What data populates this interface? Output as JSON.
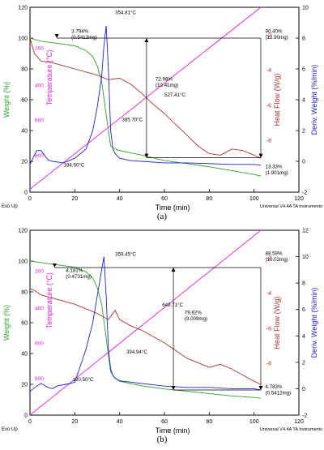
{
  "chart_data": [
    {
      "type": "line",
      "panel_label": "(a)",
      "xlabel": "Time (min)",
      "xlim": [
        0,
        120
      ],
      "x_ticks": [
        "0",
        "20",
        "40",
        "60",
        "80",
        "100",
        "120"
      ],
      "ylabel_left": "Weight (%)",
      "ylim_left": [
        0,
        120
      ],
      "left_ticks": [
        "0",
        "20",
        "40",
        "60",
        "80",
        "100",
        "120"
      ],
      "temp_label": "Temperature (°C)",
      "temp_ticks": [
        "200",
        "400",
        "600",
        "800"
      ],
      "ylabel_heat": "Heat Flow (W/g)",
      "heat_ticks": [
        "-2",
        "-4",
        "-6",
        "-8"
      ],
      "ylabel_deriv": "Deriv. Weight (%/min)",
      "ylim_deriv": [
        -2,
        10
      ],
      "deriv_ticks": [
        "-2",
        "0",
        "2",
        "4",
        "6",
        "8",
        "10"
      ],
      "footer_left": "Exo Up",
      "footer_right": "Universal V4.4A TA Instruments",
      "colors": {
        "weight": "#2ca02c",
        "temperature": "#e020e0",
        "heat_flow": "#b03030",
        "deriv": "#2020d0"
      },
      "series": [
        {
          "name": "Weight (%)",
          "axis": "left",
          "x": [
            0,
            5,
            10,
            15,
            20,
            25,
            28,
            30,
            32,
            34,
            36,
            38,
            40,
            50,
            60,
            70,
            80,
            90,
            100,
            103
          ],
          "y": [
            100,
            98,
            97,
            96,
            95,
            92,
            88,
            82,
            72,
            50,
            30,
            28,
            27,
            24,
            20.5,
            18.5,
            16.5,
            14,
            11.5,
            10.5
          ]
        },
        {
          "name": "Temperature (°C)",
          "axis": "left",
          "x": [
            0,
            103
          ],
          "y": [
            2,
            120
          ]
        },
        {
          "name": "Heat Flow (W/g)",
          "axis": "left",
          "x": [
            0,
            2,
            5,
            10,
            15,
            20,
            25,
            30,
            35,
            40,
            45,
            50,
            55,
            60,
            65,
            70,
            75,
            80,
            85,
            90,
            95,
            100,
            103
          ],
          "y": [
            100,
            90,
            85,
            84,
            82,
            80,
            78,
            76,
            73,
            74,
            70,
            64,
            57,
            51,
            44,
            37,
            30,
            25,
            24,
            28,
            27,
            24,
            22
          ]
        },
        {
          "name": "Deriv. Weight (%/min)",
          "axis": "right",
          "x": [
            0,
            3,
            5,
            8,
            10,
            15,
            20,
            25,
            28,
            30,
            32,
            33,
            34,
            35,
            36,
            37,
            38,
            40,
            45,
            50,
            60,
            70,
            80,
            90,
            100,
            103
          ],
          "y": [
            -0.2,
            0.7,
            0.7,
            0.1,
            0,
            -0.1,
            0.2,
            0.8,
            2,
            3.5,
            5.5,
            7.5,
            8.8,
            6,
            2,
            0.8,
            0.5,
            0.2,
            0.05,
            0,
            -0.1,
            -0.1,
            -0.15,
            -0.2,
            -0.2,
            -0.25
          ]
        }
      ],
      "markers": {
        "left_dashed_x": 12,
        "step_x": 52,
        "right_x": 103,
        "top_weight": 100,
        "mid_weight": 22.3,
        "end_weight": 22.3
      },
      "annotations": [
        {
          "text": "3.794%",
          "x": 18.5,
          "y": 103.5
        },
        {
          "text": "(0.5413mg)",
          "x": 18.5,
          "y": 99.5
        },
        {
          "text": "354.81°C",
          "x": 38,
          "y": 115.5
        },
        {
          "text": "72.98%",
          "x": 56,
          "y": 72.5
        },
        {
          "text": "(10.41mg)",
          "x": 56,
          "y": 68.5
        },
        {
          "text": "527.41°C",
          "x": 60,
          "y": 62
        },
        {
          "text": "385.70°C",
          "x": 41,
          "y": 46
        },
        {
          "text": "90.40%",
          "x": 105,
          "y": 103.5
        },
        {
          "text": "(12.90mg)",
          "x": 105,
          "y": 99.5
        },
        {
          "text": "184.50°C",
          "x": 15,
          "y": 16.5
        },
        {
          "text": "13.33%",
          "x": 105,
          "y": 15.5
        },
        {
          "text": "(1.901mg)",
          "x": 105,
          "y": 11.5
        }
      ]
    },
    {
      "type": "line",
      "panel_label": "(b)",
      "xlabel": "Time (min)",
      "xlim": [
        0,
        120
      ],
      "x_ticks": [
        "0",
        "20",
        "40",
        "60",
        "80",
        "100",
        "120"
      ],
      "ylabel_left": "Weight (%)",
      "ylim_left": [
        0,
        120
      ],
      "left_ticks": [
        "0",
        "20",
        "40",
        "60",
        "80",
        "100",
        "120"
      ],
      "temp_label": "Temperature (°C)",
      "temp_ticks": [
        "200",
        "400",
        "600",
        "800"
      ],
      "ylabel_heat": "Heat Flow (W/g)",
      "heat_ticks": [
        "-2",
        "-4",
        "-6",
        "-8"
      ],
      "ylabel_deriv": "Deriv. Weight (%/min)",
      "ylim_deriv": [
        -2,
        12
      ],
      "deriv_ticks": [
        "-2",
        "0",
        "2",
        "4",
        "6",
        "8",
        "10",
        "12"
      ],
      "footer_left": "Exo Up",
      "footer_right": "Universal V4.4A TA Instruments",
      "colors": {
        "weight": "#2ca02c",
        "temperature": "#e020e0",
        "heat_flow": "#b03030",
        "deriv": "#2020d0"
      },
      "series": [
        {
          "name": "Weight (%)",
          "axis": "left",
          "x": [
            0,
            5,
            10,
            15,
            20,
            25,
            28,
            30,
            32,
            34,
            36,
            38,
            40,
            50,
            60,
            70,
            80,
            90,
            100,
            103
          ],
          "y": [
            100,
            99,
            98,
            97,
            96,
            93,
            89,
            83,
            72,
            50,
            28,
            24,
            22,
            19,
            17,
            15.5,
            14,
            12.5,
            11.5,
            11
          ]
        },
        {
          "name": "Temperature (°C)",
          "axis": "left",
          "x": [
            0,
            103
          ],
          "y": [
            -3,
            120
          ]
        },
        {
          "name": "Heat Flow (W/g)",
          "axis": "left",
          "x": [
            0,
            2,
            5,
            10,
            15,
            20,
            25,
            30,
            35,
            38,
            40,
            45,
            50,
            55,
            60,
            65,
            70,
            75,
            80,
            85,
            90,
            95,
            100,
            103
          ],
          "y": [
            82,
            81,
            78,
            76,
            74,
            72,
            69,
            66,
            62,
            68,
            62,
            58,
            55,
            51,
            47,
            42,
            37,
            34,
            31,
            33,
            30,
            26,
            22,
            20
          ]
        },
        {
          "name": "Deriv. Weight (%/min)",
          "axis": "right",
          "x": [
            0,
            3,
            5,
            8,
            10,
            12,
            15,
            18,
            20,
            22,
            25,
            28,
            30,
            32,
            33,
            34,
            35,
            36,
            37,
            38,
            40,
            45,
            50,
            60,
            70,
            80,
            90,
            100,
            103
          ],
          "y": [
            -0.2,
            0.2,
            0.4,
            0.1,
            0,
            0.2,
            0.3,
            0.4,
            0.5,
            1.5,
            3,
            5,
            7,
            9,
            10,
            7,
            3,
            1.5,
            1,
            0.8,
            0.6,
            0.5,
            0.4,
            0.2,
            0.1,
            0.1,
            0,
            0,
            -0.1
          ]
        }
      ],
      "markers": {
        "left_dashed_x": 11,
        "step_x": 64,
        "right_x": 103,
        "top_weight": 95.8,
        "mid_weight": 16.3,
        "end_weight": 16.3
      },
      "annotations": [
        {
          "text": "4.181%",
          "x": 16,
          "y": 93
        },
        {
          "text": "(0.4731mg)",
          "x": 16,
          "y": 89
        },
        {
          "text": "359.45°C",
          "x": 38,
          "y": 103.5
        },
        {
          "text": "649.71°C",
          "x": 59,
          "y": 70.5
        },
        {
          "text": "79.62%",
          "x": 69,
          "y": 65.5
        },
        {
          "text": "(9.009mg)",
          "x": 69,
          "y": 61.5
        },
        {
          "text": "394.94°C",
          "x": 43,
          "y": 40
        },
        {
          "text": "88.59%",
          "x": 105,
          "y": 104
        },
        {
          "text": "(10.02mg)",
          "x": 105,
          "y": 100
        },
        {
          "text": "190.50°C",
          "x": 19,
          "y": 22
        },
        {
          "text": "4.783%",
          "x": 105,
          "y": 17.5
        },
        {
          "text": "(0.5412mg)",
          "x": 105,
          "y": 13.5
        }
      ]
    }
  ]
}
